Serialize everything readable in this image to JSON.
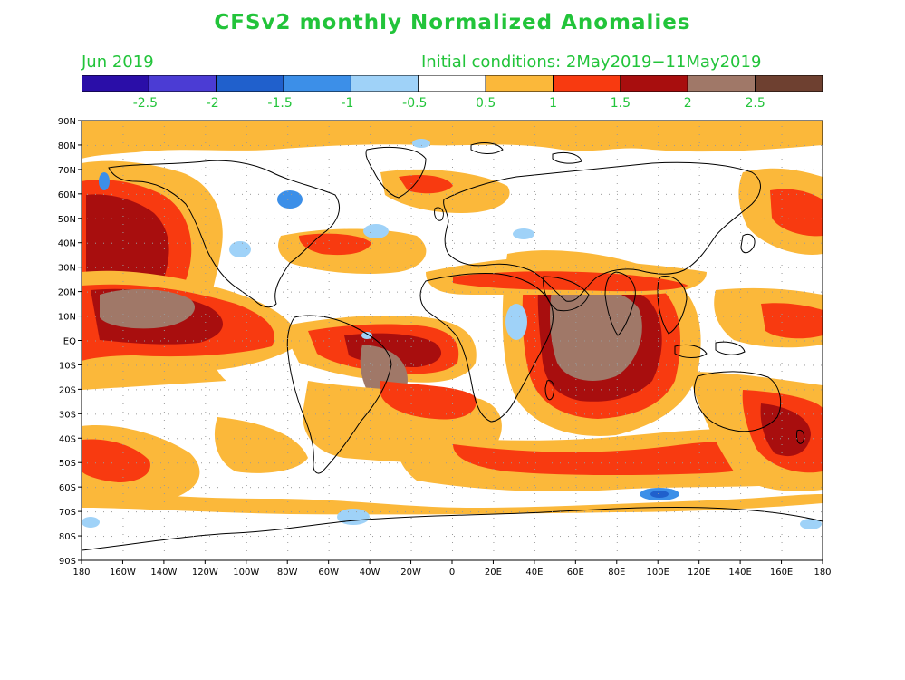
{
  "title": "CFSv2 monthly Normalized Anomalies",
  "month_label": "Jun 2019",
  "init_label": "Initial conditions: 2May2019−11May2019",
  "colorbar": {
    "colors": [
      "#2a0ea8",
      "#4b3cd4",
      "#2060cc",
      "#3c8fe8",
      "#9fd2f8",
      "#ffffff",
      "#fbb83a",
      "#f83a10",
      "#a80e0e",
      "#a07868",
      "#6e4030"
    ],
    "tick_labels": [
      "-2.5",
      "-2",
      "-1.5",
      "-1",
      "-0.5",
      "0.5",
      "1",
      "1.5",
      "2",
      "2.5"
    ],
    "label_color": "#22c43a"
  },
  "map": {
    "lat_labels": [
      "90N",
      "80N",
      "70N",
      "60N",
      "50N",
      "40N",
      "30N",
      "20N",
      "10N",
      "EQ",
      "10S",
      "20S",
      "30S",
      "40S",
      "50S",
      "60S",
      "70S",
      "80S",
      "90S"
    ],
    "lon_labels": [
      "180",
      "160W",
      "140W",
      "120W",
      "100W",
      "80W",
      "60W",
      "40W",
      "20W",
      "0",
      "20E",
      "40E",
      "60E",
      "80E",
      "100E",
      "120E",
      "140E",
      "160E",
      "180"
    ]
  }
}
